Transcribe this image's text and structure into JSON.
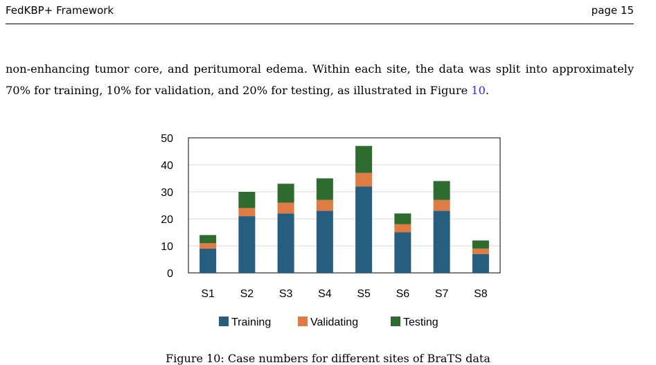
{
  "header": {
    "left": "FedKBP+ Framework",
    "right": "page 15"
  },
  "paragraph": {
    "text": "non-enhancing tumor core, and peritumoral edema. Within each site, the data was split into approximately 70% for training, 10% for validation, and 20% for testing, as illustrated in Figure ",
    "figure_ref": "10",
    "end": "."
  },
  "chart_data": {
    "type": "bar",
    "stacked": true,
    "categories": [
      "S1",
      "S2",
      "S3",
      "S4",
      "S5",
      "S6",
      "S7",
      "S8"
    ],
    "series": [
      {
        "name": "Training",
        "color": "#255e7e",
        "values": [
          9,
          21,
          22,
          23,
          32,
          15,
          23,
          7
        ]
      },
      {
        "name": "Validating",
        "color": "#e07b43",
        "values": [
          2,
          3,
          4,
          4,
          5,
          3,
          4,
          2
        ]
      },
      {
        "name": "Testing",
        "color": "#2e6b2e",
        "values": [
          3,
          6,
          7,
          8,
          10,
          4,
          7,
          3
        ]
      }
    ],
    "yticks": [
      "0",
      "10",
      "20",
      "30",
      "40",
      "50"
    ],
    "ylim": [
      0,
      50
    ],
    "grid": true,
    "legend": "bottom"
  },
  "caption": {
    "text": "Figure 10: Case numbers for different sites of BraTS data"
  }
}
